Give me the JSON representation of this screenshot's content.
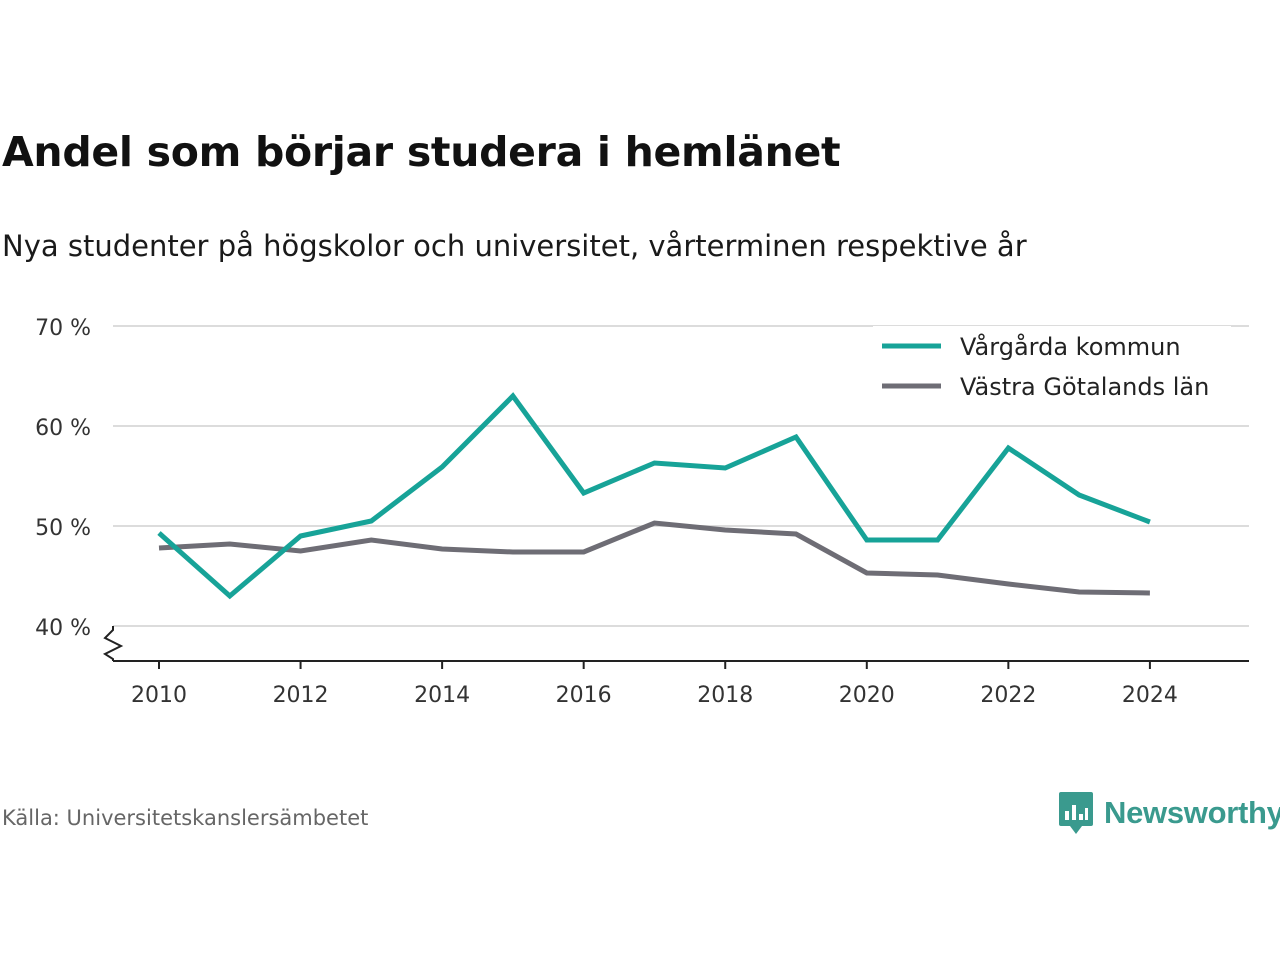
{
  "title": "Andel som börjar studera i hemlänet",
  "subtitle": "Nya studenter på högskolor och universitet, vårterminen respektive år",
  "source": "Källa: Universitetskanslersämbetet",
  "brand": "Newsworthy",
  "chart_data": {
    "type": "line",
    "x": [
      2010,
      2011,
      2012,
      2013,
      2014,
      2015,
      2016,
      2017,
      2018,
      2019,
      2020,
      2021,
      2022,
      2023,
      2024
    ],
    "series": [
      {
        "name": "Vårgårda kommun",
        "color": "#17a398",
        "values": [
          49.3,
          43.0,
          49.0,
          50.5,
          55.9,
          63.0,
          53.3,
          56.3,
          55.8,
          58.9,
          48.6,
          48.6,
          57.8,
          53.1,
          50.4
        ]
      },
      {
        "name": "Västra Götalands län",
        "color": "#6e6d75",
        "values": [
          47.8,
          48.2,
          47.5,
          48.6,
          47.7,
          47.4,
          47.4,
          50.3,
          49.6,
          49.2,
          45.3,
          45.1,
          44.2,
          43.4,
          43.3
        ]
      }
    ],
    "xticks": [
      2010,
      2012,
      2014,
      2016,
      2018,
      2020,
      2022,
      2024
    ],
    "xtick_labels": [
      "2010",
      "2012",
      "2014",
      "2016",
      "2018",
      "2020",
      "2022",
      "2024"
    ],
    "yticks": [
      40,
      50,
      60,
      70
    ],
    "ytick_labels": [
      "40 %",
      "50 %",
      "60 %",
      "70 %"
    ],
    "ylim": [
      36.5,
      70
    ],
    "xlim": [
      2009.35,
      2025.4
    ],
    "xlabel": "",
    "ylabel": "",
    "grid": true,
    "legend_position": "top-right",
    "y_axis_break": true
  }
}
